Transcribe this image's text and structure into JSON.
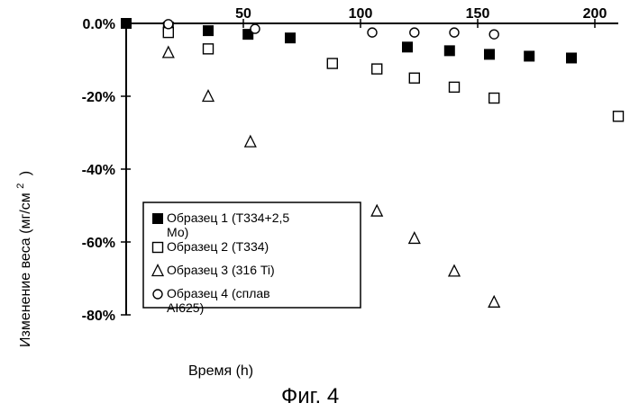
{
  "chart_data": {
    "type": "scatter",
    "xlabel": "Время (h)",
    "ylabel": "Изменение веса (мг/см",
    "ylabel_sup": "2",
    "ylabel_close": ")",
    "caption": "Фиг. 4",
    "xlim": [
      0,
      210
    ],
    "ylim": [
      -80,
      0
    ],
    "x_ticks": [
      50,
      100,
      150,
      200
    ],
    "y_ticks": [
      0,
      -20,
      -40,
      -60,
      -80
    ],
    "y_tick_labels": [
      "0.0%",
      "-20%",
      "-40%",
      "-60%",
      "-80%"
    ],
    "legend_position": "lower-left",
    "series": [
      {
        "name": "Образец 1 (Т334+2,5 Мо)",
        "legend_lines": [
          "Образец 1 (Т334+2,5",
          "Мо)"
        ],
        "marker": "filled-square",
        "x": [
          0,
          18,
          35,
          52,
          70,
          120,
          138,
          155,
          172,
          190
        ],
        "y": [
          0,
          -1,
          -2,
          -3,
          -4,
          -6.5,
          -7.5,
          -8.5,
          -9,
          -9.5
        ]
      },
      {
        "name": "Образец 2 (Т334)",
        "legend_lines": [
          "Образец 2 (Т334)"
        ],
        "marker": "open-square",
        "x": [
          18,
          35,
          88,
          107,
          123,
          140,
          157,
          210
        ],
        "y": [
          -2.5,
          -7,
          -11,
          -12.5,
          -15,
          -17.5,
          -20.5,
          -25.5
        ]
      },
      {
        "name": "Образец 3 (316 Ti)",
        "legend_lines": [
          "Образец 3 (316 Ti)"
        ],
        "marker": "open-triangle",
        "x": [
          18,
          35,
          53,
          107,
          123,
          140,
          157
        ],
        "y": [
          -8,
          -20,
          -32.5,
          -51.5,
          -59,
          -68,
          -76.5
        ]
      },
      {
        "name": "Образец 4 (сплав AI625)",
        "legend_lines": [
          "Образец 4 (сплав",
          "AI625)"
        ],
        "marker": "open-circle",
        "x": [
          18,
          55,
          105,
          123,
          140,
          157
        ],
        "y": [
          -0.2,
          -1.5,
          -2.5,
          -2.5,
          -2.5,
          -3
        ]
      }
    ]
  }
}
